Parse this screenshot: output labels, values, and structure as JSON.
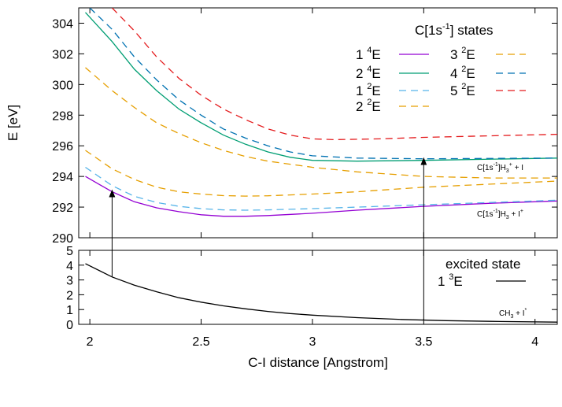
{
  "chart_data": {
    "type": "line",
    "xlabel": "C-I distance [Angstrom]",
    "x_ticks": [
      "2",
      "2.5",
      "3",
      "3.5",
      "4"
    ],
    "xlim": [
      1.95,
      4.1
    ],
    "panels": [
      {
        "id": "upper",
        "ylabel": "E [eV]",
        "ylim": [
          290,
          305
        ],
        "y_ticks": [
          "290",
          "292",
          "294",
          "296",
          "298",
          "300",
          "302",
          "304"
        ],
        "legend": {
          "title": "C[1s-1] states",
          "title_parts": {
            "base": "C[1s",
            "sup": "-1",
            "tail": "] states"
          },
          "placement": "top-right"
        },
        "series": [
          {
            "name": "1 4E",
            "label": {
              "num": "1",
              "sup": "4",
              "sym": "E"
            },
            "color": "#9400d3",
            "dash": "solid",
            "x": [
              1.98,
              2.1,
              2.2,
              2.3,
              2.4,
              2.5,
              2.6,
              2.7,
              2.8,
              3.0,
              3.2,
              3.5,
              3.8,
              4.1
            ],
            "y": [
              294.0,
              293.0,
              292.35,
              291.95,
              291.7,
              291.5,
              291.4,
              291.4,
              291.45,
              291.6,
              291.8,
              292.05,
              292.25,
              292.4
            ]
          },
          {
            "name": "2 4E",
            "label": {
              "num": "2",
              "sup": "4",
              "sym": "E"
            },
            "color": "#009e73",
            "dash": "solid",
            "x": [
              1.98,
              2.1,
              2.2,
              2.3,
              2.4,
              2.5,
              2.6,
              2.7,
              2.8,
              2.9,
              3.0,
              3.2,
              3.5,
              4.1
            ],
            "y": [
              304.7,
              302.8,
              301.0,
              299.6,
              298.4,
              297.5,
              296.7,
              296.1,
              295.6,
              295.25,
              295.05,
              295.0,
              295.05,
              295.2
            ]
          },
          {
            "name": "1 2E",
            "label": {
              "num": "1",
              "sup": "2",
              "sym": "E"
            },
            "color": "#56b4e9",
            "dash": "dashed",
            "x": [
              1.98,
              2.1,
              2.2,
              2.3,
              2.4,
              2.5,
              2.6,
              2.7,
              2.8,
              3.0,
              3.2,
              3.5,
              3.8,
              4.1
            ],
            "y": [
              294.6,
              293.4,
              292.7,
              292.3,
              292.05,
              291.9,
              291.82,
              291.8,
              291.82,
              291.9,
              292.0,
              292.15,
              292.3,
              292.45
            ]
          },
          {
            "name": "2 2E",
            "label": {
              "num": "2",
              "sup": "2",
              "sym": "E"
            },
            "color": "#e69f00",
            "dash": "dashed",
            "x": [
              1.98,
              2.1,
              2.2,
              2.3,
              2.4,
              2.5,
              2.6,
              2.7,
              2.8,
              3.0,
              3.2,
              3.5,
              3.8,
              4.1
            ],
            "y": [
              295.7,
              294.5,
              293.8,
              293.3,
              293.0,
              292.85,
              292.75,
              292.72,
              292.74,
              292.85,
              293.0,
              293.3,
              293.5,
              293.7
            ]
          },
          {
            "name": "3 2E",
            "label": {
              "num": "3",
              "sup": "2",
              "sym": "E"
            },
            "color": "#e69f00",
            "dash": "dashed",
            "x": [
              1.98,
              2.1,
              2.2,
              2.3,
              2.4,
              2.5,
              2.6,
              2.7,
              2.8,
              2.9,
              3.0,
              3.2,
              3.5,
              3.8,
              4.1
            ],
            "y": [
              301.1,
              299.6,
              298.5,
              297.5,
              296.8,
              296.2,
              295.7,
              295.3,
              295.0,
              294.8,
              294.6,
              294.3,
              294.0,
              293.9,
              293.9
            ]
          },
          {
            "name": "4 2E",
            "label": {
              "num": "4",
              "sup": "2",
              "sym": "E"
            },
            "color": "#0072b2",
            "dash": "dashed",
            "x": [
              2.0,
              2.1,
              2.2,
              2.3,
              2.4,
              2.5,
              2.6,
              2.7,
              2.8,
              2.9,
              3.0,
              3.2,
              3.5,
              4.1
            ],
            "y": [
              305.0,
              303.6,
              301.8,
              300.3,
              299.0,
              298.0,
              297.1,
              296.5,
              296.0,
              295.6,
              295.35,
              295.2,
              295.15,
              295.2
            ]
          },
          {
            "name": "5 2E",
            "label": {
              "num": "5",
              "sup": "2",
              "sym": "E"
            },
            "color": "#e41a1c",
            "dash": "dashed",
            "x": [
              2.1,
              2.2,
              2.3,
              2.4,
              2.5,
              2.6,
              2.7,
              2.8,
              2.9,
              3.0,
              3.1,
              3.3,
              3.5,
              3.8,
              4.1
            ],
            "y": [
              305.0,
              303.5,
              301.8,
              300.4,
              299.3,
              298.4,
              297.7,
              297.1,
              296.7,
              296.45,
              296.4,
              296.45,
              296.55,
              296.65,
              296.75
            ]
          }
        ],
        "annotations": [
          {
            "text": "C[1s-1]H3+ + I",
            "parts": [
              [
                "C[1s",
                ""
              ],
              [
                "-1",
                "sup"
              ],
              [
                "]H",
                ""
              ],
              [
                "3",
                "sub"
              ],
              [
                "+",
                "sup"
              ],
              [
                " + I",
                ""
              ]
            ],
            "x": 3.75,
            "y": 294.5
          },
          {
            "text": "C[1s-1]H3 + I+",
            "parts": [
              [
                "C[1s",
                ""
              ],
              [
                "-1",
                "sup"
              ],
              [
                "]H",
                ""
              ],
              [
                "3",
                "sub"
              ],
              [
                " + I",
                ""
              ],
              [
                "+",
                "sup"
              ]
            ],
            "x": 3.75,
            "y": 291.5
          }
        ]
      },
      {
        "id": "lower",
        "ylim": [
          0,
          5
        ],
        "y_ticks": [
          "0",
          "1",
          "2",
          "3",
          "4",
          "5"
        ],
        "legend": {
          "title": "excited state",
          "placement": "right"
        },
        "series": [
          {
            "name": "1 3E",
            "label": {
              "num": "1",
              "sup": "3",
              "sym": "E"
            },
            "color": "#000000",
            "dash": "solid",
            "x": [
              1.98,
              2.1,
              2.2,
              2.3,
              2.4,
              2.5,
              2.6,
              2.7,
              2.8,
              2.9,
              3.0,
              3.2,
              3.4,
              3.6,
              3.8,
              4.1
            ],
            "y": [
              4.1,
              3.2,
              2.65,
              2.2,
              1.8,
              1.5,
              1.25,
              1.05,
              0.87,
              0.73,
              0.62,
              0.45,
              0.33,
              0.25,
              0.2,
              0.15
            ]
          }
        ],
        "annotations": [
          {
            "text": "CH3 + I*",
            "parts": [
              [
                "CH",
                ""
              ],
              [
                "3",
                "sub"
              ],
              [
                " + I",
                ""
              ],
              [
                "*",
                "sup"
              ]
            ],
            "x": 3.85,
            "y": 0.7
          }
        ]
      }
    ],
    "arrows": [
      {
        "x": 2.1,
        "from": 3.2,
        "to": 293.0
      },
      {
        "x": 3.5,
        "from": 0.3,
        "to": 295.1
      }
    ]
  }
}
